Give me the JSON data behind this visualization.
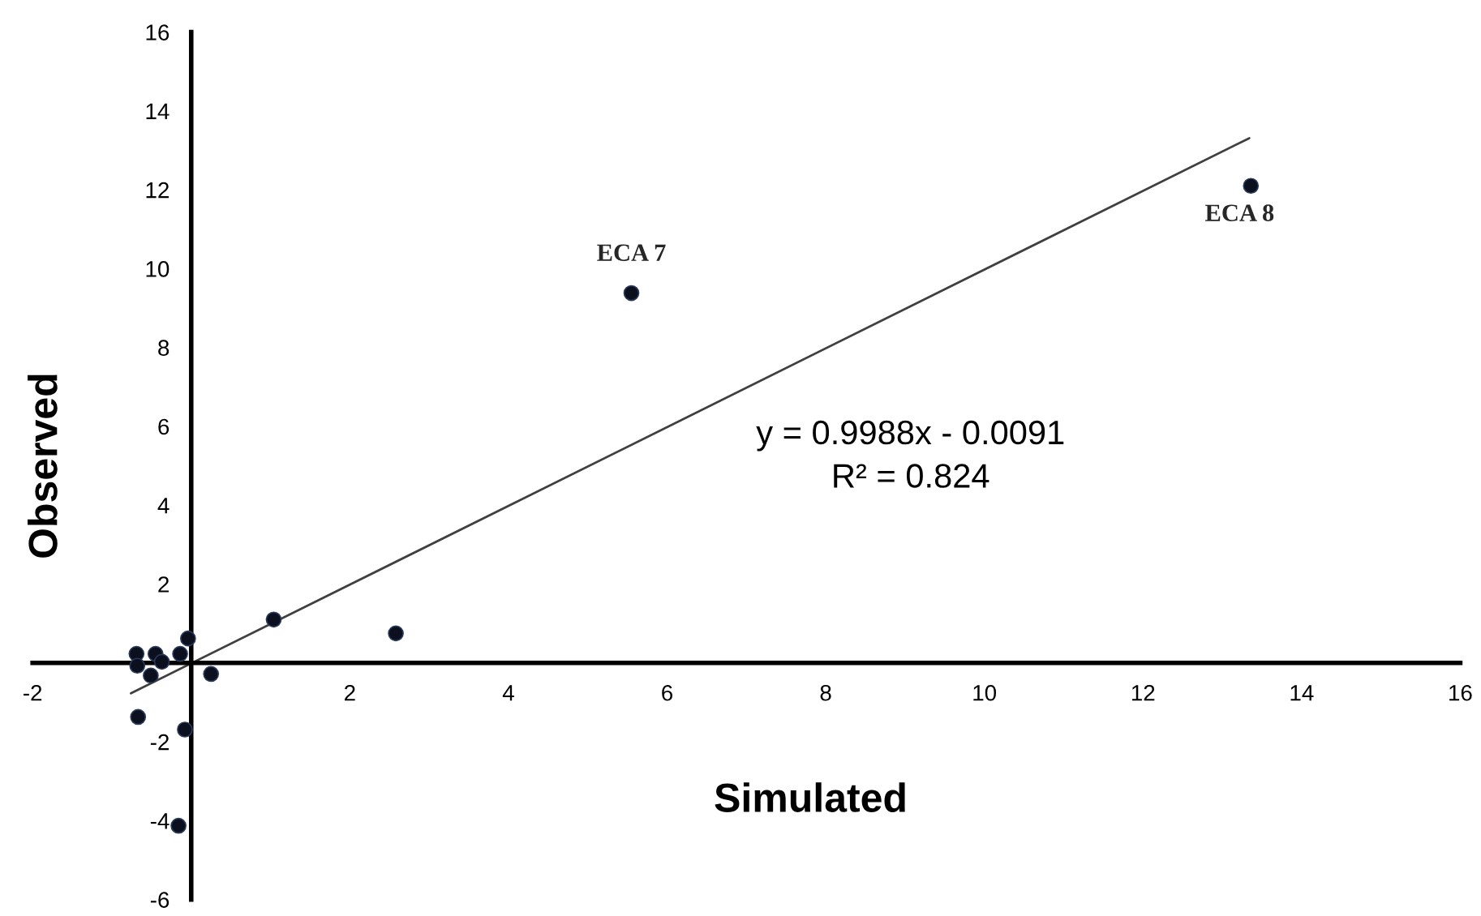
{
  "chart_data": {
    "type": "scatter",
    "xlabel": "Simulated",
    "ylabel": "Observed",
    "xlim": [
      -2,
      16
    ],
    "ylim": [
      -6,
      16
    ],
    "xticks": [
      -2,
      2,
      4,
      6,
      8,
      10,
      12,
      14,
      16
    ],
    "yticks": [
      -6,
      -4,
      -2,
      2,
      4,
      6,
      8,
      10,
      12,
      14,
      16
    ],
    "grid": false,
    "legend": false,
    "marker": "circle",
    "series": [
      {
        "color": "#0b0f1e",
        "x": [
          -0.69,
          -0.68,
          -0.45,
          -0.37,
          -0.51,
          -0.14,
          -0.04,
          0.25,
          1.04,
          2.58,
          -0.67,
          -0.08,
          -0.16,
          5.55,
          13.36
        ],
        "values": [
          0.23,
          -0.07,
          0.23,
          0.03,
          -0.32,
          0.23,
          0.62,
          -0.28,
          1.1,
          0.75,
          -1.37,
          -1.69,
          -4.13,
          9.38,
          12.1
        ]
      },
      {
        "type": "line",
        "marker": "none",
        "color": "#404040",
        "line_style": "solid",
        "x": [
          -0.76,
          13.34
        ],
        "values": [
          -0.77,
          13.31
        ]
      }
    ],
    "annotations": [
      {
        "text": "ECA 7",
        "x": 5.55,
        "y": 9.38
      },
      {
        "text": "ECA 8",
        "x": 13.36,
        "y": 12.1
      },
      "y = 0.9988x - 0.0091",
      "R² = 0.824"
    ]
  }
}
